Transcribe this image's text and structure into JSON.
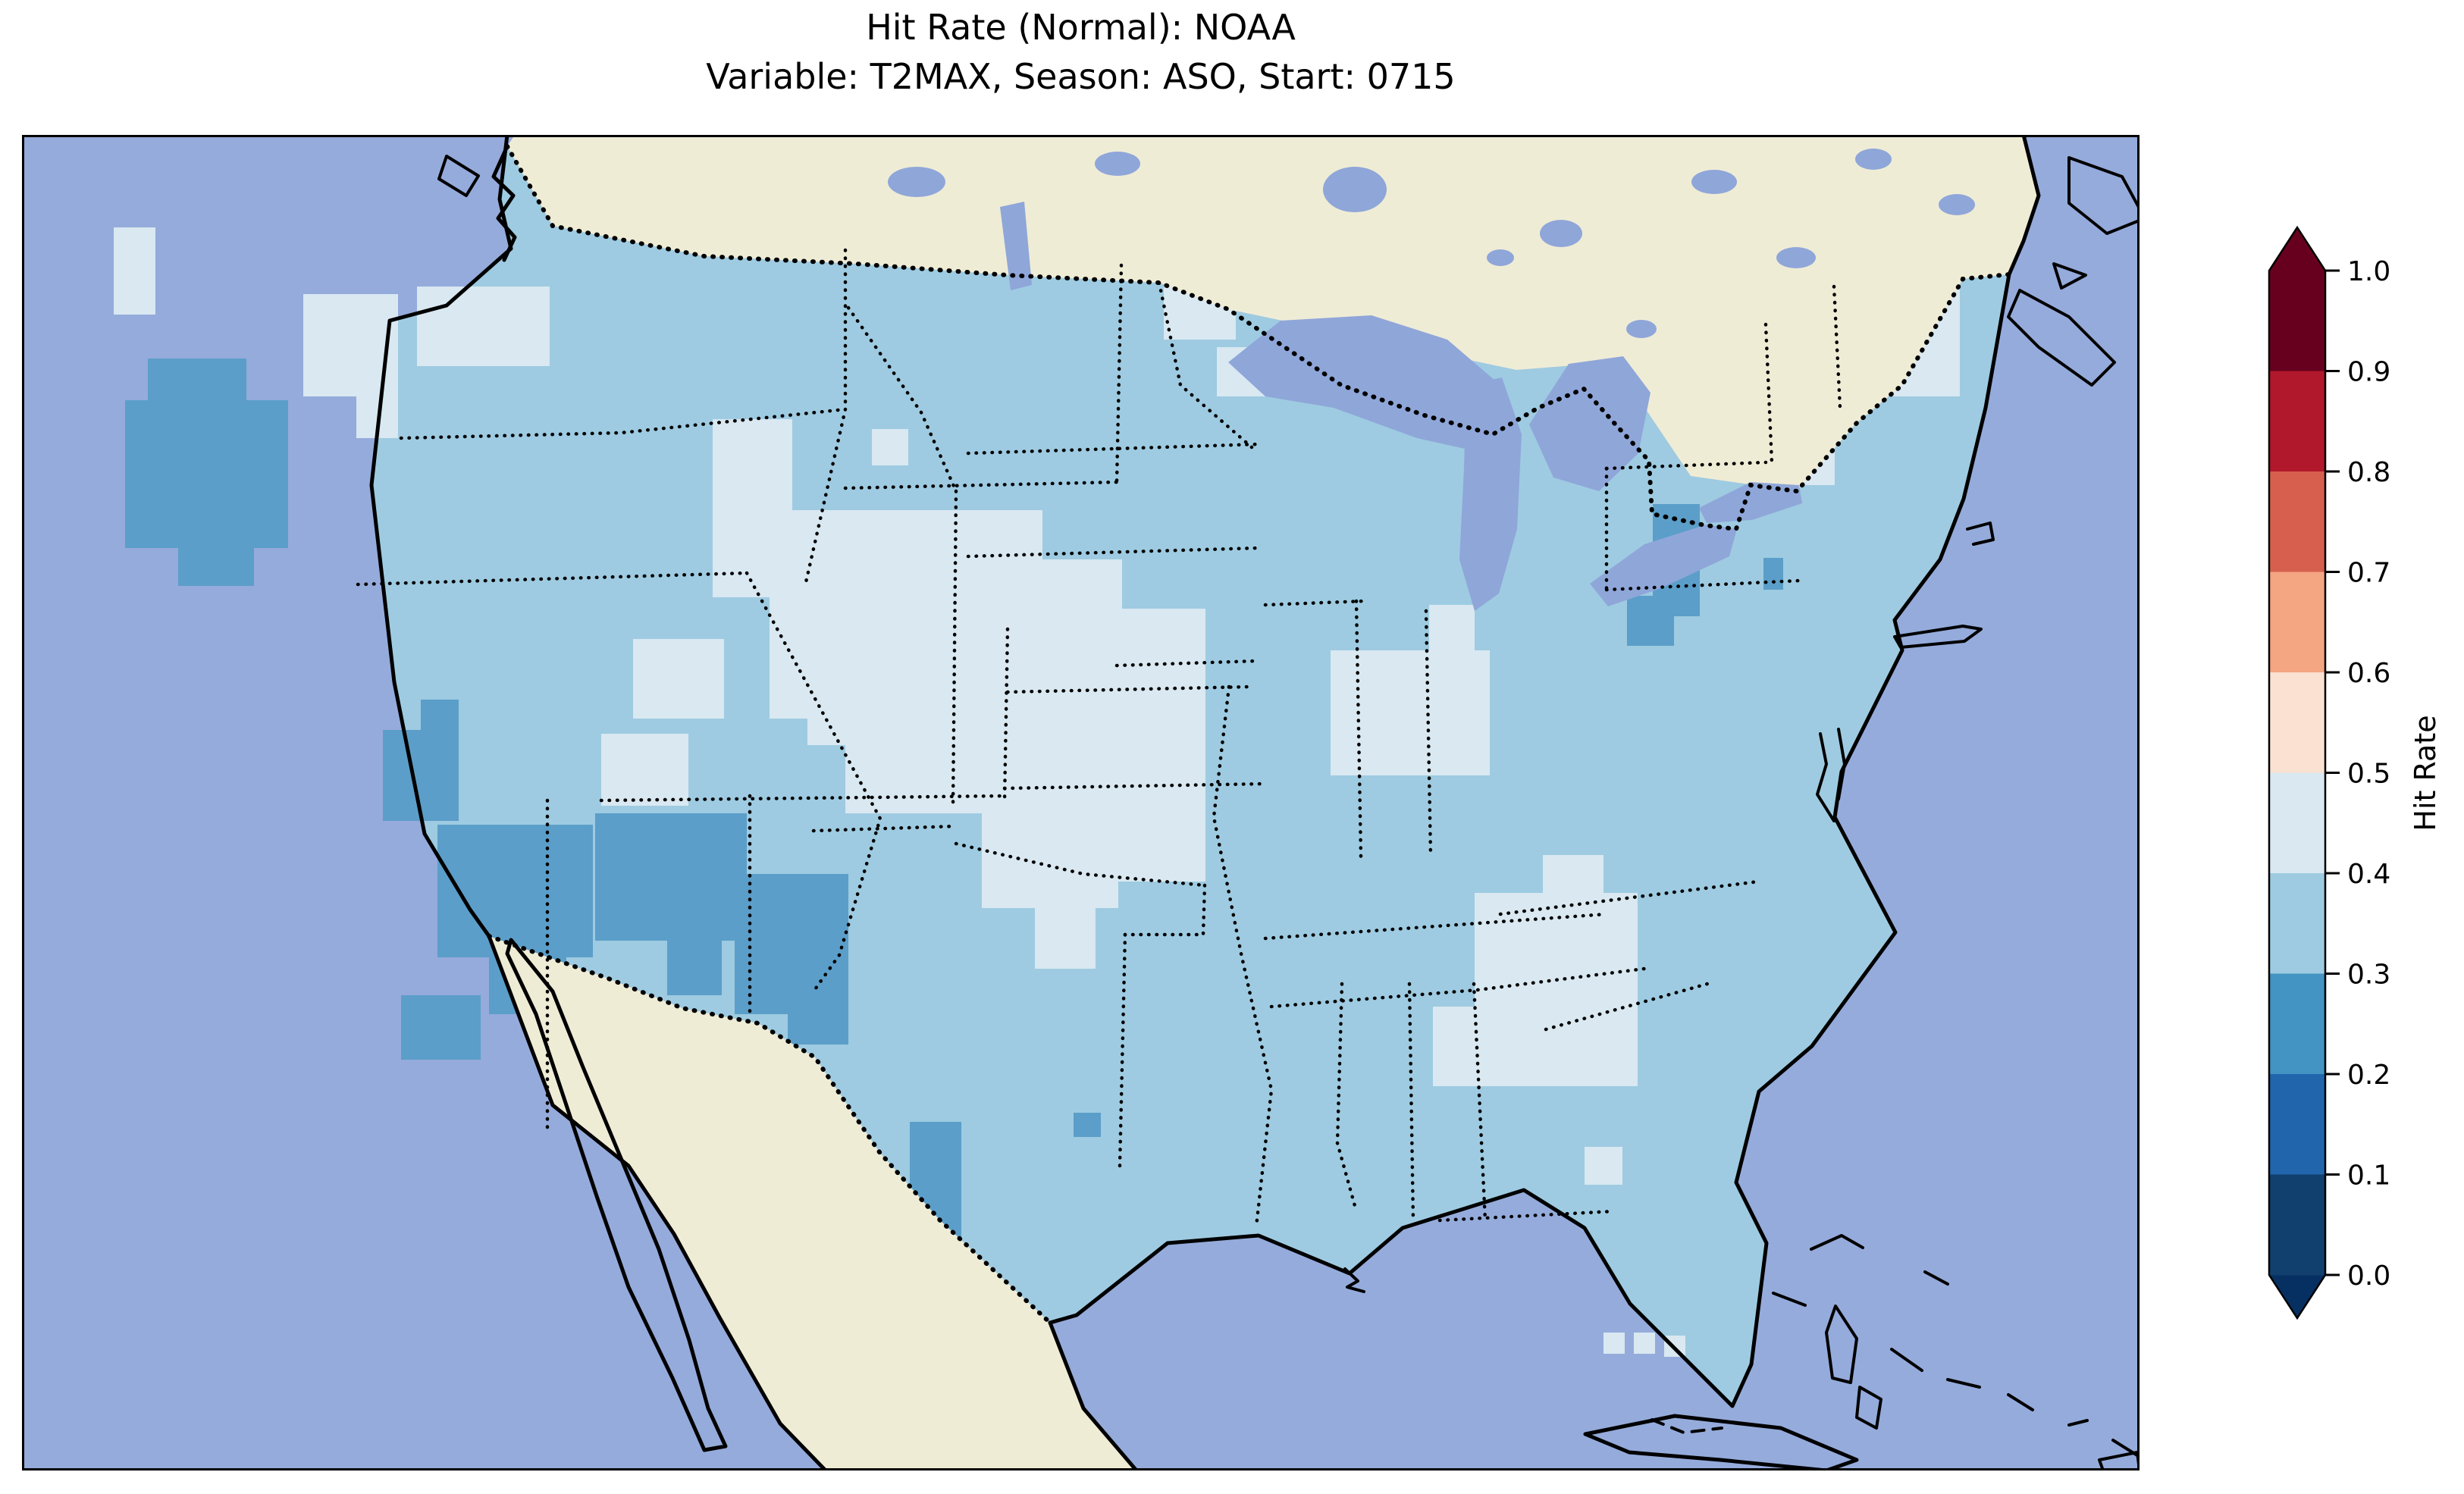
{
  "title": {
    "line1": "Hit Rate (Normal): NOAA",
    "line2": "Variable: T2MAX, Season: ASO, Start: 0715"
  },
  "chart_data": {
    "type": "heatmap",
    "title": "Hit Rate (Normal): NOAA",
    "subtitle": "Variable: T2MAX, Season: ASO, Start: 0715",
    "source": "NOAA",
    "variable": "T2MAX",
    "season": "ASO",
    "start": "0715",
    "metric": "Hit Rate (Normal)",
    "region": "Continental United States",
    "colorbar": {
      "label": "Hit Rate",
      "orientation": "vertical",
      "range": [
        0.0,
        1.0
      ],
      "ticks_top_to_bottom": [
        "1.0",
        "0.9",
        "0.8",
        "0.7",
        "0.6",
        "0.5",
        "0.4",
        "0.3",
        "0.2",
        "0.1",
        "0.0"
      ],
      "bins": [
        {
          "range": "0.0-0.1",
          "color": "#11406f"
        },
        {
          "range": "0.1-0.2",
          "color": "#2166ac"
        },
        {
          "range": "0.2-0.3",
          "color": "#4393c3"
        },
        {
          "range": "0.3-0.4",
          "color": "#9ecbe1"
        },
        {
          "range": "0.4-0.5",
          "color": "#d9e8f1"
        },
        {
          "range": "0.5-0.6",
          "color": "#fbe1d1"
        },
        {
          "range": "0.6-0.7",
          "color": "#f4a582"
        },
        {
          "range": "0.7-0.8",
          "color": "#d6604d"
        },
        {
          "range": "0.8-0.9",
          "color": "#b2182b"
        },
        {
          "range": "0.9-1.0",
          "color": "#67001f"
        }
      ],
      "over_color": "#67001f",
      "under_color": "#053061"
    },
    "map": {
      "base_bin": "0.3-0.4",
      "base_value": 0.35,
      "ocean_color": "#95abdb",
      "land_color": "#efecd6",
      "lake_color": "#8fa6d9",
      "base_color": "#9ecbe1",
      "bin_colors": {
        "0.2-0.3": "#5b9ec9",
        "0.3-0.4": "#9ecbe1",
        "0.4-0.5": "#d9e8f1"
      },
      "patches": [
        {
          "name": "coastal-washington",
          "bin": "0.4-0.5",
          "value": 0.45,
          "rects": [
            [
              121,
              122,
              55,
              115
            ]
          ]
        },
        {
          "name": "coastal-oregon",
          "bin": "0.4-0.5",
          "value": 0.45,
          "rects": [
            [
              231,
              365,
              50,
              110
            ]
          ]
        },
        {
          "name": "idaho-montana-border",
          "bin": "0.4-0.5",
          "value": 0.45,
          "rects": [
            [
              371,
              210,
              125,
              135
            ],
            [
              441,
              345,
              55,
              55
            ]
          ]
        },
        {
          "name": "northern-montana",
          "bin": "0.4-0.5",
          "value": 0.45,
          "rects": [
            [
              521,
              200,
              175,
              105
            ]
          ]
        },
        {
          "name": "eastern-wyoming",
          "bin": "0.4-0.5",
          "value": 0.45,
          "rects": [
            [
              911,
              375,
              105,
              235
            ]
          ]
        },
        {
          "name": "nebraska-kansas",
          "bin": "0.4-0.5",
          "value": 0.45,
          "rects": [
            [
              986,
              495,
              360,
              275
            ],
            [
              1086,
              770,
              245,
              125
            ],
            [
              1036,
              745,
              100,
              60
            ]
          ]
        },
        {
          "name": "colorado-rockies",
          "bin": "0.4-0.5",
          "value": 0.45,
          "rects": [
            [
              806,
              665,
              120,
              105
            ]
          ]
        },
        {
          "name": "four-corners",
          "bin": "0.4-0.5",
          "value": 0.45,
          "rects": [
            [
              764,
              790,
              115,
              95
            ]
          ]
        },
        {
          "name": "dakotas-cell",
          "bin": "0.4-0.5",
          "value": 0.45,
          "rects": [
            [
              1121,
              388,
              48,
              48
            ]
          ]
        },
        {
          "name": "northern-minnesota",
          "bin": "0.4-0.5",
          "value": 0.45,
          "rects": [
            [
              1506,
              195,
              95,
              75
            ]
          ]
        },
        {
          "name": "northwest-wisconsin",
          "bin": "0.4-0.5",
          "value": 0.45,
          "rects": [
            [
              1576,
              280,
              65,
              65
            ]
          ]
        },
        {
          "name": "iowa-missouri-illinois",
          "bin": "0.4-0.5",
          "value": 0.45,
          "rects": [
            [
              1266,
              560,
              180,
              460
            ],
            [
              1446,
              625,
              115,
              360
            ],
            [
              1391,
              560,
              60,
              90
            ],
            [
              1336,
              1020,
              80,
              80
            ]
          ]
        },
        {
          "name": "ohio-valley",
          "bin": "0.4-0.5",
          "value": 0.45,
          "rects": [
            [
              1726,
              680,
              210,
              165
            ],
            [
              1856,
              620,
              60,
              60
            ]
          ]
        },
        {
          "name": "georgia-carolinas",
          "bin": "0.4-0.5",
          "value": 0.45,
          "rects": [
            [
              1916,
              1000,
              215,
              255
            ],
            [
              2006,
              950,
              80,
              60
            ]
          ]
        },
        {
          "name": "alabama",
          "bin": "0.4-0.5",
          "value": 0.45,
          "rects": [
            [
              1861,
              1150,
              75,
              105
            ]
          ]
        },
        {
          "name": "new-england",
          "bin": "0.4-0.5",
          "value": 0.45,
          "rects": [
            [
              2346,
              120,
              210,
              225
            ],
            [
              2296,
              352,
              95,
              110
            ]
          ]
        },
        {
          "name": "northeast-florida",
          "bin": "0.4-0.5",
          "value": 0.45,
          "rects": [
            [
              2061,
              1335,
              50,
              50
            ]
          ]
        },
        {
          "name": "florida-offshore",
          "bin": "0.4-0.5",
          "value": 0.45,
          "rects": [
            [
              2086,
              1580,
              28,
              28
            ],
            [
              2126,
              1580,
              28,
              28
            ],
            [
              2166,
              1584,
              28,
              28
            ]
          ]
        },
        {
          "name": "eastern-oregon-idaho",
          "bin": "0.2-0.3",
          "value": 0.25,
          "rects": [
            [
              166,
              295,
              130,
              60
            ],
            [
              136,
              350,
              215,
              195
            ],
            [
              206,
              540,
              100,
              55
            ]
          ]
        },
        {
          "name": "southern-utah",
          "bin": "0.2-0.3",
          "value": 0.25,
          "rects": [
            [
              476,
              785,
              100,
              120
            ],
            [
              526,
              745,
              50,
              45
            ]
          ]
        },
        {
          "name": "arizona-new-mexico",
          "bin": "0.2-0.3",
          "value": 0.25,
          "rects": [
            [
              548,
              910,
              205,
              175
            ],
            [
              756,
              895,
              200,
              168
            ],
            [
              616,
              1080,
              102,
              80
            ],
            [
              851,
              1063,
              72,
              72
            ]
          ]
        },
        {
          "name": "eastern-new-mexico",
          "bin": "0.2-0.3",
          "value": 0.25,
          "rects": [
            [
              940,
              975,
              150,
              185
            ],
            [
              1010,
              1115,
              80,
              85
            ]
          ]
        },
        {
          "name": "southern-arizona",
          "bin": "0.2-0.3",
          "value": 0.25,
          "rects": [
            [
              500,
              1135,
              105,
              85
            ]
          ]
        },
        {
          "name": "west-texas",
          "bin": "0.2-0.3",
          "value": 0.25,
          "rects": [
            [
              1025,
              1290,
              62,
              62
            ]
          ]
        },
        {
          "name": "south-texas",
          "bin": "0.2-0.3",
          "value": 0.25,
          "rects": [
            [
              1171,
              1302,
              68,
              135
            ],
            [
              1121,
              1420,
              118,
              110
            ],
            [
              1046,
              1465,
              122,
              155
            ]
          ]
        },
        {
          "name": "pennsylvania-new-york",
          "bin": "0.2-0.3",
          "value": 0.25,
          "rects": [
            [
              2151,
              487,
              62,
              148
            ],
            [
              2117,
              608,
              62,
              66
            ]
          ]
        },
        {
          "name": "new-jersey-coast",
          "bin": "0.2-0.3",
          "value": 0.25,
          "rects": [
            [
              2297,
              558,
              26,
              42
            ]
          ]
        },
        {
          "name": "louisiana-cell",
          "bin": "0.2-0.3",
          "value": 0.25,
          "rects": [
            [
              1387,
              1290,
              36,
              32
            ]
          ]
        }
      ]
    }
  }
}
